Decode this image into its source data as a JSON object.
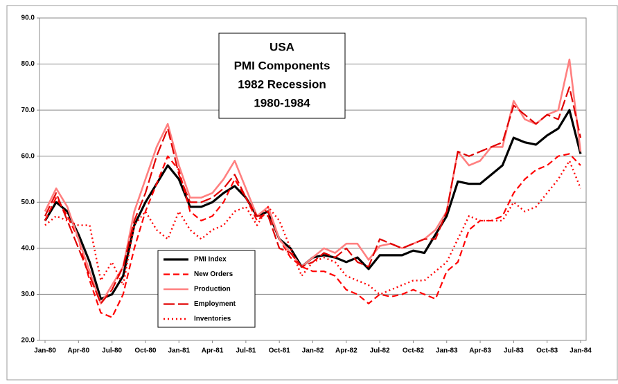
{
  "chart_data": {
    "type": "line",
    "title": [
      "USA",
      "PMI Components",
      "1982 Recession",
      "1980-1984"
    ],
    "categories": [
      "Jan-80",
      null,
      null,
      "Apr-80",
      null,
      null,
      "Jul-80",
      null,
      null,
      "Oct-80",
      null,
      null,
      "Jan-81",
      null,
      null,
      "Apr-81",
      null,
      null,
      "Jul-81",
      null,
      null,
      "Oct-81",
      null,
      null,
      "Jan-82",
      null,
      null,
      "Apr-82",
      null,
      null,
      "Jul-82",
      null,
      null,
      "Oct-82",
      null,
      null,
      "Jan-83",
      null,
      null,
      "Apr-83",
      null,
      null,
      "Jul-83",
      null,
      null,
      "Oct-83",
      null,
      null,
      "Jan-84"
    ],
    "ylim": [
      20,
      90
    ],
    "yticks": [
      {
        "value": 20,
        "label": "20.0"
      },
      {
        "value": 30,
        "label": "30.0"
      },
      {
        "value": 40,
        "label": "40.0"
      },
      {
        "value": 50,
        "label": "50.0"
      },
      {
        "value": 60,
        "label": "60.0"
      },
      {
        "value": 70,
        "label": "70.0"
      },
      {
        "value": 80,
        "label": "80.0"
      },
      {
        "value": 90,
        "label": "90.0"
      }
    ],
    "grid": true,
    "series": [
      {
        "name": "PMI Index",
        "color": "#000000",
        "values": [
          46,
          50,
          48,
          43,
          37,
          29,
          30,
          34,
          45,
          50,
          54,
          58,
          55,
          49,
          49,
          50,
          52,
          53.5,
          51,
          47,
          48,
          42,
          40,
          36,
          38,
          38.5,
          38,
          37,
          38,
          35.5,
          38.5,
          38.5,
          38.5,
          39.5,
          39,
          43,
          47,
          54.5,
          54,
          54,
          56,
          58,
          64,
          63,
          62.5,
          64.5,
          66,
          70,
          60.5
        ]
      },
      {
        "name": "New Orders",
        "color": "#ff0000",
        "values": [
          46,
          51,
          47,
          42,
          33,
          26,
          25,
          30,
          40,
          48,
          54,
          60,
          57,
          48,
          46,
          47,
          50,
          55,
          51,
          46,
          48,
          42,
          38,
          36,
          35,
          35,
          34,
          31,
          30,
          28,
          30,
          29.5,
          30,
          31,
          30,
          29,
          35,
          37,
          44,
          46,
          46,
          47,
          52,
          55,
          57,
          58,
          60,
          60.5,
          58
        ]
      },
      {
        "name": "Production",
        "color": "#ff8080",
        "values": [
          48,
          53,
          49,
          42,
          35,
          28,
          32,
          36,
          48,
          55,
          62,
          67,
          58,
          51,
          51,
          52,
          55,
          59,
          53,
          47,
          49,
          42,
          39,
          36,
          38,
          40,
          39,
          41,
          41,
          37.5,
          40.5,
          41,
          40,
          41,
          42,
          44,
          48,
          61,
          58,
          59,
          62,
          62,
          72,
          68,
          67,
          69,
          70,
          81,
          61
        ]
      },
      {
        "name": "Employment",
        "color": "#e00000",
        "values": [
          47,
          52,
          46,
          40,
          34,
          28,
          31,
          36,
          46,
          52,
          60,
          66,
          56,
          50,
          50,
          51,
          53,
          56,
          51,
          47,
          47,
          40,
          39,
          36,
          37,
          39,
          38,
          40,
          37,
          36,
          42,
          41,
          40,
          41,
          42,
          42,
          48,
          61,
          60,
          61,
          62,
          63,
          71,
          69,
          67,
          69,
          68,
          75,
          64
        ]
      },
      {
        "name": "Inventories",
        "color": "#ff0000",
        "values": [
          45,
          47,
          46,
          45,
          45,
          33,
          37,
          32,
          45,
          48,
          44,
          42,
          48,
          44,
          42,
          44,
          45,
          48,
          49,
          45,
          49,
          46,
          40,
          34,
          37,
          38,
          37,
          34,
          33,
          32,
          30,
          31,
          32,
          33,
          33,
          35,
          37,
          42,
          47,
          46,
          46,
          46,
          50,
          48,
          49,
          52,
          55,
          59,
          53
        ]
      }
    ]
  }
}
